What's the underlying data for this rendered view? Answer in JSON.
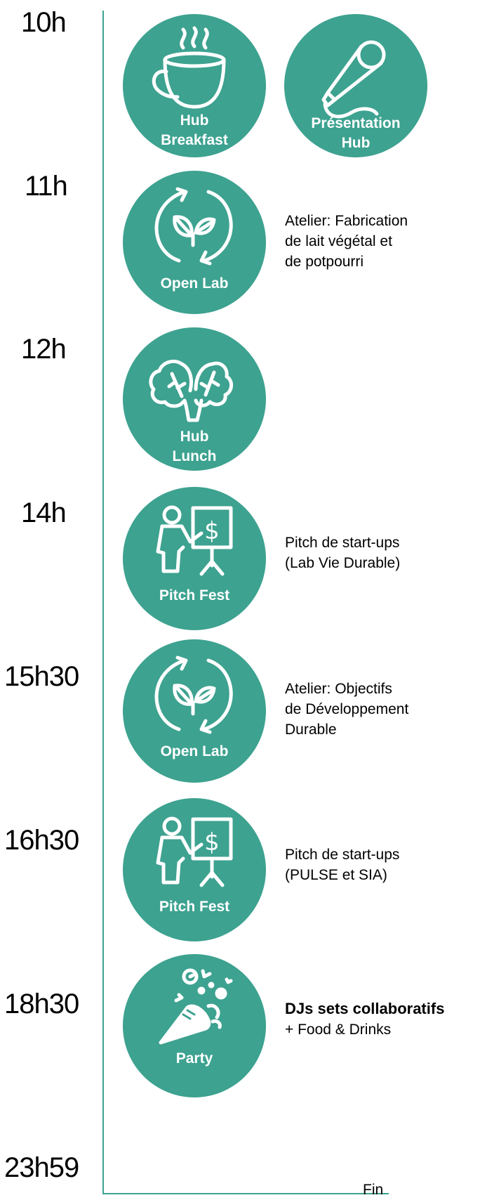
{
  "times": [
    "10h",
    "11h",
    "12h",
    "14h",
    "15h30",
    "16h30",
    "18h30",
    "23h59"
  ],
  "events": [
    {
      "label_lines": [
        "Hub",
        "Breakfast"
      ],
      "icon": "coffee-cup-icon"
    },
    {
      "label_lines": [
        "Présentation",
        "Hub"
      ],
      "icon": "microphone-icon"
    },
    {
      "label_lines": [
        "Open Lab"
      ],
      "icon": "recycle-leaf-icon",
      "desc_lines": [
        "Atelier: Fabrication",
        "de lait végétal et",
        "de potpourri"
      ]
    },
    {
      "label_lines": [
        "Hub",
        "Lunch"
      ],
      "icon": "lettuce-icon"
    },
    {
      "label_lines": [
        "Pitch Fest"
      ],
      "icon": "presenter-icon",
      "desc_lines": [
        "Pitch de start-ups",
        "(Lab Vie Durable)"
      ]
    },
    {
      "label_lines": [
        "Open Lab"
      ],
      "icon": "recycle-leaf-icon",
      "desc_lines": [
        "Atelier: Objectifs",
        "de Développement",
        "Durable"
      ]
    },
    {
      "label_lines": [
        "Pitch Fest"
      ],
      "icon": "presenter-icon",
      "desc_lines": [
        "Pitch de start-ups",
        "(PULSE et SIA)"
      ]
    },
    {
      "label_lines": [
        "Party"
      ],
      "icon": "party-popper-icon",
      "desc_bold": "DJs sets collaboratifs",
      "desc_lines": [
        "+ Food & Drinks"
      ]
    }
  ],
  "end_label": "Fin",
  "colors": {
    "accent": "#3da290",
    "icon_stroke": "#ffffff"
  }
}
